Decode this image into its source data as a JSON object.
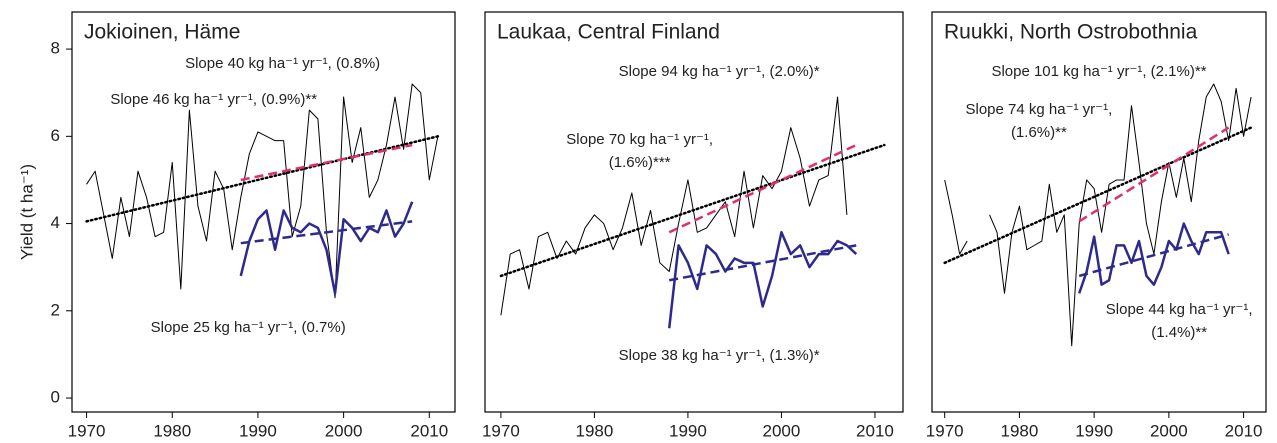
{
  "chart_data": [
    {
      "type": "line",
      "title": "Jokioinen, Häme",
      "y_label": "Yield (t ha⁻¹)",
      "xlim": [
        1968.3,
        2013
      ],
      "xticks": [
        1970,
        1980,
        1990,
        2000,
        2010
      ],
      "ylim": [
        -0.32,
        8.85
      ],
      "yticks": [
        0,
        2,
        4,
        6,
        8
      ],
      "series": [
        {
          "color": "#000000",
          "style": "solid",
          "width": 1,
          "x": [
            1970,
            1971,
            1972,
            1973,
            1974,
            1975,
            1976,
            1977,
            1978,
            1979,
            1980,
            1981,
            1982,
            1983,
            1984,
            1985,
            1986,
            1987,
            1988,
            1989,
            1990,
            1991,
            1992,
            1993,
            1994,
            1995,
            1996,
            1997,
            1998,
            1999,
            2000,
            2001,
            2002,
            2003,
            2004,
            2005,
            2006,
            2007,
            2008,
            2009,
            2010,
            2011
          ],
          "values": [
            4.9,
            5.2,
            4.2,
            3.2,
            4.6,
            3.7,
            5.2,
            4.6,
            3.7,
            3.8,
            5.4,
            2.5,
            6.6,
            4.4,
            3.6,
            5.2,
            4.8,
            3.4,
            4.6,
            5.6,
            6.1,
            6.0,
            5.9,
            5.9,
            3.7,
            4.4,
            6.6,
            6.4,
            3.8,
            2.3,
            6.9,
            5.4,
            6.2,
            4.6,
            5.0,
            5.8,
            6.9,
            5.7,
            7.2,
            7.0,
            5.0,
            6.0
          ]
        },
        {
          "color": "#2e2a8c",
          "style": "solid",
          "width": 2.5,
          "x": [
            1988,
            1989,
            1990,
            1991,
            1992,
            1993,
            1994,
            1995,
            1996,
            1997,
            1998,
            1999,
            2000,
            2001,
            2002,
            2003,
            2004,
            2005,
            2006,
            2007,
            2008
          ],
          "values": [
            2.8,
            3.6,
            4.1,
            4.3,
            3.4,
            4.3,
            3.9,
            3.8,
            4.0,
            3.9,
            3.4,
            2.4,
            4.1,
            3.9,
            3.6,
            3.9,
            3.8,
            4.3,
            3.7,
            4.0,
            4.5
          ]
        },
        {
          "color": "#000000",
          "style": "dotted",
          "width": 2.5,
          "x": [
            1970,
            2011
          ],
          "values": [
            4.05,
            6.0
          ]
        },
        {
          "color": "#e0306a",
          "style": "dashed",
          "width": 2.5,
          "x": [
            1988,
            2008
          ],
          "values": [
            5.0,
            5.8
          ]
        },
        {
          "color": "#2e2a8c",
          "style": "dashed",
          "width": 2.5,
          "x": [
            1988,
            2008
          ],
          "values": [
            3.55,
            4.05
          ]
        }
      ],
      "annotations": [
        {
          "text": [
            "Slope 40 kg ha⁻¹ yr⁻¹, (0.8%)"
          ],
          "color": "#e0306a"
        },
        {
          "text": [
            "Slope 46 kg ha⁻¹ yr⁻¹, (0.9%)**"
          ],
          "color": "#111111"
        },
        {
          "text": [
            "Slope 25 kg ha⁻¹ yr⁻¹, (0.7%)"
          ],
          "color": "#2e2a8c"
        }
      ]
    },
    {
      "type": "line",
      "title": "Laukaa, Central Finland",
      "xlim": [
        1968.3,
        2013
      ],
      "xticks": [
        1970,
        1980,
        1990,
        2000,
        2010
      ],
      "ylim": [
        -0.32,
        8.85
      ],
      "series": [
        {
          "color": "#000000",
          "style": "solid",
          "width": 1,
          "x": [
            1970,
            1971,
            1972,
            1973,
            1974,
            1975,
            1976,
            1977,
            1978,
            1979,
            1980,
            1981,
            1982,
            1983,
            1984,
            1985,
            1986,
            1987,
            1988,
            1989,
            1990,
            1991,
            1992,
            1993,
            1994,
            1995,
            1996,
            1997,
            1998,
            1999,
            2000,
            2001,
            2002,
            2003,
            2004,
            2005,
            2006,
            2007
          ],
          "values": [
            1.9,
            3.3,
            3.4,
            2.5,
            3.7,
            3.8,
            3.2,
            3.6,
            3.3,
            3.9,
            4.2,
            4.0,
            3.4,
            3.9,
            4.7,
            3.5,
            4.3,
            3.1,
            2.9,
            4.0,
            5.0,
            3.8,
            3.9,
            4.2,
            4.5,
            3.7,
            5.2,
            3.9,
            5.1,
            4.8,
            5.2,
            6.2,
            5.5,
            4.4,
            5.0,
            5.1,
            6.9,
            4.2
          ]
        },
        {
          "color": "#2e2a8c",
          "style": "solid",
          "width": 2.5,
          "x": [
            1988,
            1989,
            1990,
            1991,
            1992,
            1993,
            1994,
            1995,
            1996,
            1997,
            1998,
            1999,
            2000,
            2001,
            2002,
            2003,
            2004,
            2005,
            2006,
            2007,
            2008
          ],
          "values": [
            1.6,
            3.5,
            3.1,
            2.5,
            3.5,
            3.3,
            2.9,
            3.2,
            3.1,
            3.1,
            2.1,
            2.8,
            3.8,
            3.3,
            3.5,
            3.0,
            3.3,
            3.3,
            3.6,
            3.5,
            3.3
          ]
        },
        {
          "color": "#000000",
          "style": "dotted",
          "width": 2.5,
          "x": [
            1970,
            2011
          ],
          "values": [
            2.8,
            5.8
          ]
        },
        {
          "color": "#e0306a",
          "style": "dashed",
          "width": 2.5,
          "x": [
            1988,
            2008
          ],
          "values": [
            3.8,
            5.8
          ]
        },
        {
          "color": "#2e2a8c",
          "style": "dashed",
          "width": 2.5,
          "x": [
            1988,
            2008
          ],
          "values": [
            2.7,
            3.5
          ]
        }
      ],
      "annotations": [
        {
          "text": [
            "Slope 94 kg ha⁻¹ yr⁻¹, (2.0%)*"
          ],
          "color": "#e0306a"
        },
        {
          "text": [
            "Slope 70 kg ha⁻¹ yr⁻¹,",
            "(1.6%)***"
          ],
          "color": "#111111"
        },
        {
          "text": [
            "Slope 38 kg ha⁻¹ yr⁻¹, (1.3%)*"
          ],
          "color": "#2e2a8c"
        }
      ]
    },
    {
      "type": "line",
      "title": "Ruukki, North Ostrobothnia",
      "xlim": [
        1968.3,
        2013
      ],
      "xticks": [
        1970,
        1980,
        1990,
        2000,
        2010
      ],
      "ylim": [
        -0.32,
        8.85
      ],
      "series": [
        {
          "color": "#000000",
          "style": "solid",
          "width": 1,
          "x": [
            1970,
            1971,
            1972,
            1973,
            1974,
            1975,
            1976,
            1977,
            1978,
            1979,
            1980,
            1981,
            1982,
            1983,
            1984,
            1985,
            1986,
            1987,
            1988,
            1989,
            1990,
            1991,
            1992,
            1993,
            1994,
            1995,
            1996,
            1997,
            1998,
            1999,
            2000,
            2001,
            2002,
            2003,
            2004,
            2005,
            2006,
            2007,
            2008,
            2009,
            2010,
            2011
          ],
          "values": [
            5.0,
            4.2,
            3.3,
            3.6,
            null,
            null,
            4.2,
            3.8,
            2.4,
            3.8,
            4.4,
            3.4,
            3.5,
            3.6,
            4.9,
            3.8,
            4.2,
            1.2,
            4.0,
            5.0,
            4.8,
            3.8,
            4.9,
            5.0,
            5.0,
            6.7,
            5.4,
            4.0,
            3.3,
            4.5,
            5.4,
            4.6,
            5.5,
            4.5,
            5.9,
            6.9,
            7.2,
            6.8,
            5.9,
            7.1,
            6.0,
            6.9
          ]
        },
        {
          "color": "#2e2a8c",
          "style": "solid",
          "width": 2.5,
          "x": [
            1988,
            1989,
            1990,
            1991,
            1992,
            1993,
            1994,
            1995,
            1996,
            1997,
            1998,
            1999,
            2000,
            2001,
            2002,
            2003,
            2004,
            2005,
            2006,
            2007,
            2008
          ],
          "values": [
            2.4,
            2.9,
            3.7,
            2.6,
            2.7,
            3.5,
            3.5,
            3.1,
            3.6,
            2.8,
            2.6,
            3.0,
            3.6,
            3.4,
            4.0,
            3.6,
            3.3,
            3.8,
            3.8,
            3.8,
            3.3
          ]
        },
        {
          "color": "#000000",
          "style": "dotted",
          "width": 2.5,
          "x": [
            1970,
            2011
          ],
          "values": [
            3.1,
            6.2
          ]
        },
        {
          "color": "#e0306a",
          "style": "dashed",
          "width": 2.5,
          "x": [
            1988,
            2008
          ],
          "values": [
            4.05,
            6.2
          ]
        },
        {
          "color": "#2e2a8c",
          "style": "dashed",
          "width": 2.5,
          "x": [
            1988,
            2008
          ],
          "values": [
            2.8,
            3.75
          ]
        }
      ],
      "annotations": [
        {
          "text": [
            "Slope 101 kg ha⁻¹ yr⁻¹, (2.1%)**"
          ],
          "color": "#e0306a"
        },
        {
          "text": [
            "Slope 74 kg ha⁻¹ yr⁻¹,",
            "(1.6%)**"
          ],
          "color": "#111111"
        },
        {
          "text": [
            "Slope 44 kg ha⁻¹ yr⁻¹,",
            "(1.4%)**"
          ],
          "color": "#2e2a8c"
        }
      ]
    }
  ]
}
